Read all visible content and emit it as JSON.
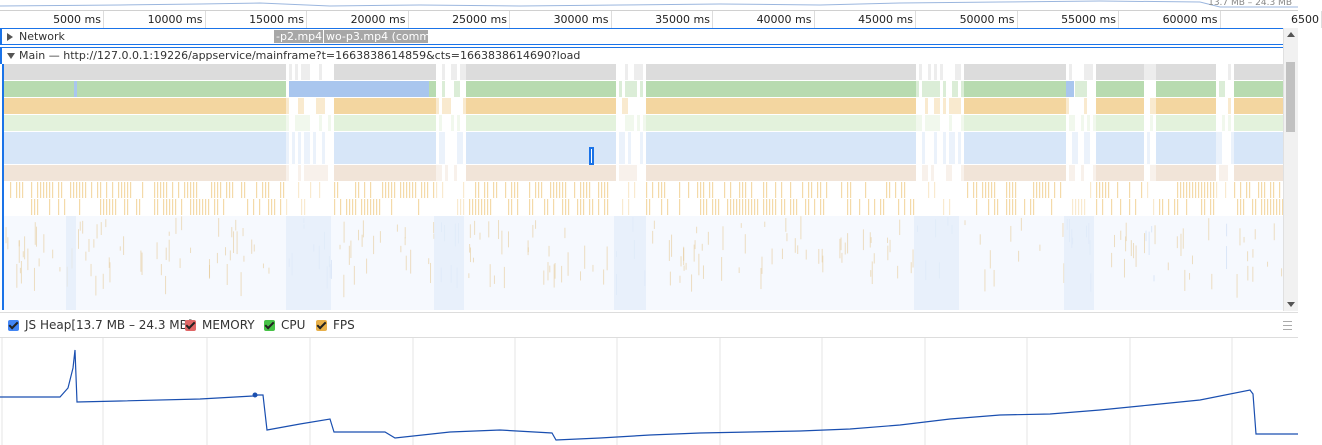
{
  "overview": {
    "heap_range_label": "13.7 MB – 24.3 MB"
  },
  "ruler": {
    "ticks": [
      "5000 ms",
      "10000 ms",
      "15000 ms",
      "20000 ms",
      "25000 ms",
      "30000 ms",
      "35000 ms",
      "40000 ms",
      "45000 ms",
      "50000 ms",
      "55000 ms",
      "60000 ms",
      "6500"
    ]
  },
  "network_track": {
    "label": "Network",
    "requests": [
      "-p2.mp4",
      "wo-p3.mp4 (comm..."
    ]
  },
  "main_track": {
    "label": "Main — http://127.0.0.1:19226/appservice/mainframe?t=1663838614859&cts=1663838614690?load"
  },
  "legend": {
    "js_heap": "JS Heap[13.7 MB – 24.3 MB]",
    "memory": "MEMORY",
    "cpu": "CPU",
    "fps": "FPS",
    "colors": {
      "js_heap": "#4285f4",
      "memory": "#e06666",
      "cpu": "#46c246",
      "fps": "#e8b04a"
    }
  },
  "colors": {
    "heap_line": "#1a4fb0",
    "selection": "#1a73e8",
    "flame_green": "#b8dbb0",
    "flame_orange": "#f3d6a0",
    "flame_blue": "#d7e6f8",
    "flame_lightgreen": "#e3f2dc",
    "flame_beige": "#f1e4d8",
    "flame_grey": "#dcdcdc"
  }
}
